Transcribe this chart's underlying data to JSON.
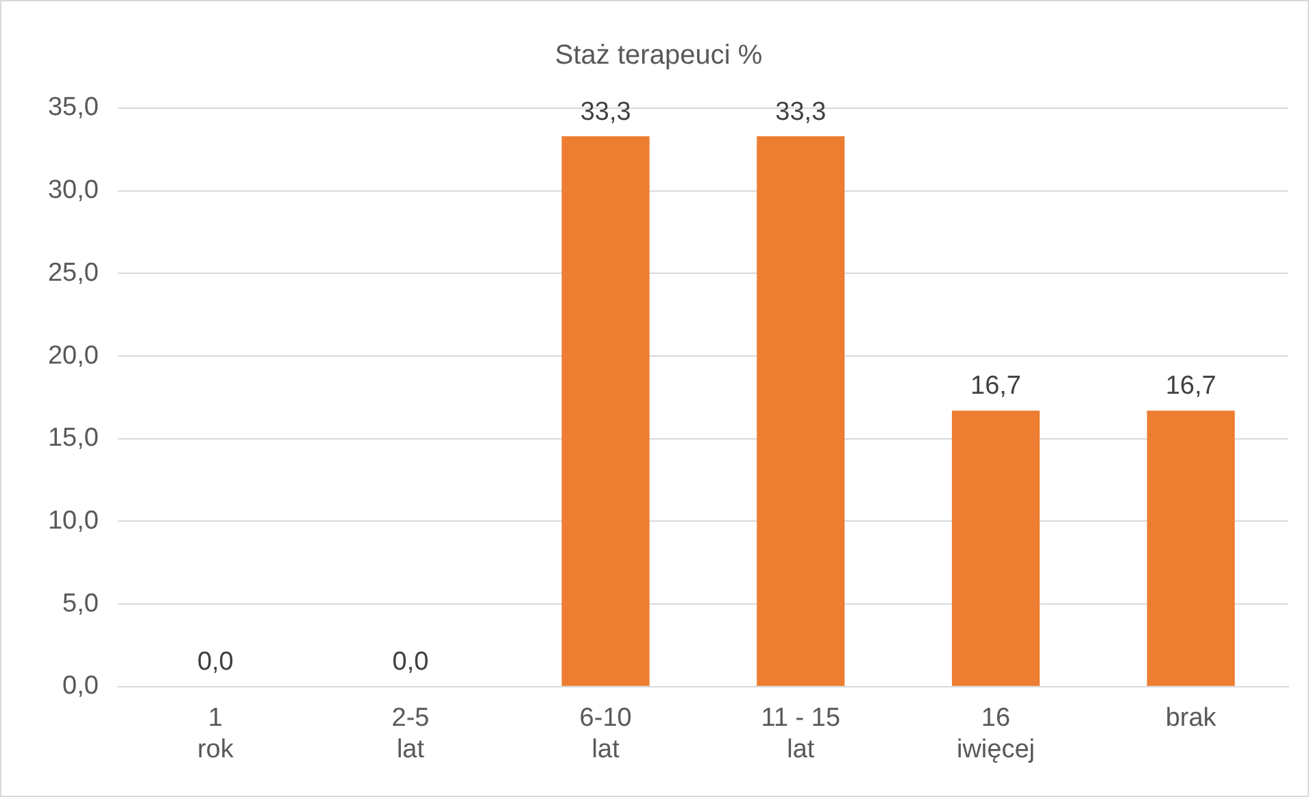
{
  "chart_data": {
    "type": "bar",
    "title": "Staż terapeuci %",
    "categories": [
      "1 rok",
      "2-5 lat",
      "6-10 lat",
      "11 - 15 lat",
      "16 iwięcej",
      "brak"
    ],
    "values": [
      0,
      0,
      33.3,
      33.3,
      16.7,
      16.7
    ],
    "value_labels": [
      "0,0",
      "0,0",
      "33,3",
      "33,3",
      "16,7",
      "16,7"
    ],
    "color": "#ed7d31",
    "ylim": [
      0,
      35
    ],
    "yticks": [
      {
        "value": 0,
        "label": "0,0"
      },
      {
        "value": 5,
        "label": "5,0"
      },
      {
        "value": 10,
        "label": "10,0"
      },
      {
        "value": 15,
        "label": "15,0"
      },
      {
        "value": 20,
        "label": "20,0"
      },
      {
        "value": 25,
        "label": "25,0"
      },
      {
        "value": 30,
        "label": "30,0"
      },
      {
        "value": 35,
        "label": "35,0"
      }
    ],
    "grid": "y",
    "legend": false
  }
}
